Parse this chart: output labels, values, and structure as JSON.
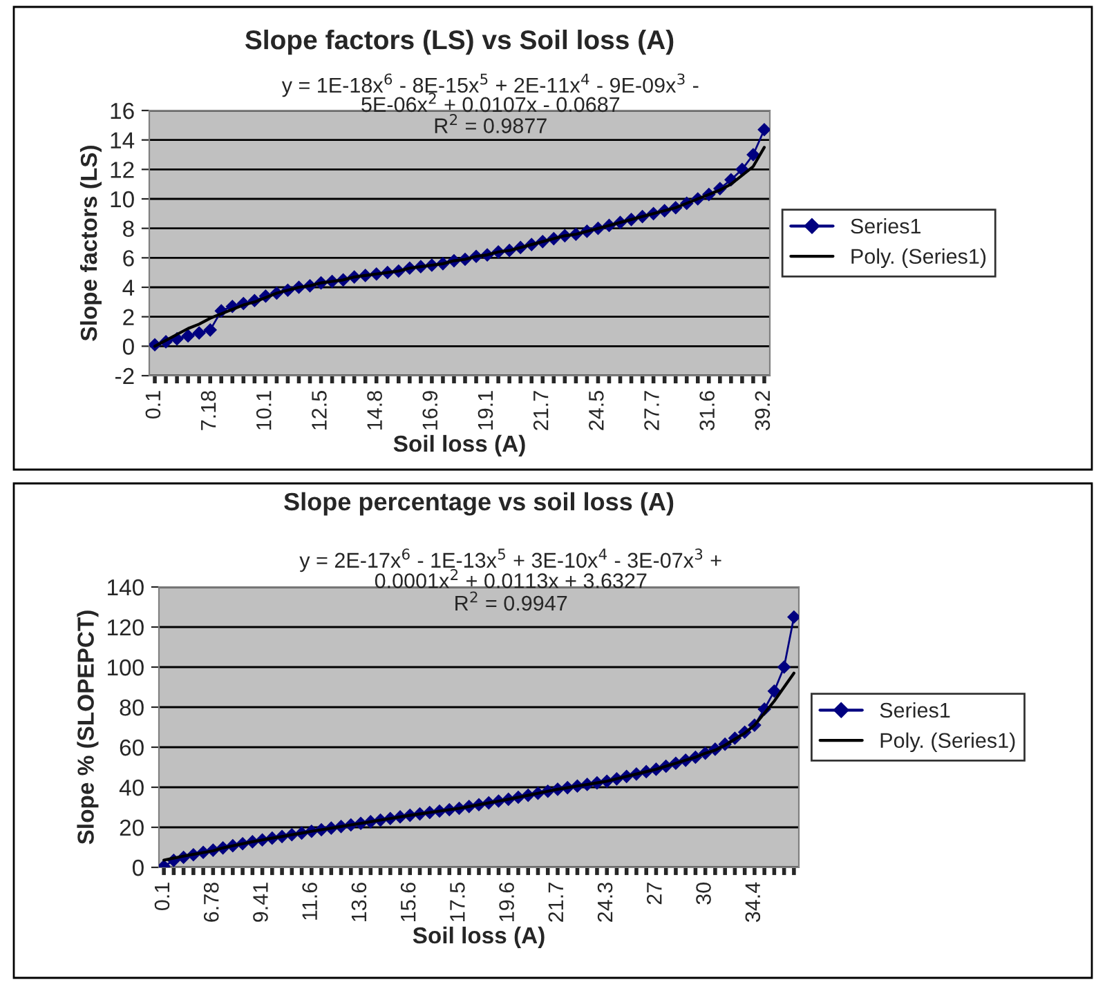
{
  "chart_data": [
    {
      "type": "line",
      "title": "Slope factors (LS) vs Soil loss (A)",
      "xlabel": "Soil loss (A)",
      "ylabel": "Slope factors (LS)",
      "annotations": [
        "y = 1E-18x$^{6}$ - 8E-15x$^{5}$ + 2E-11x$^{4}$ - 9E-09x$^{3}$ -",
        "5E-06x$^{2}$ + 0.0107x - 0.0687",
        "R$^{2}$ = 0.9877"
      ],
      "categories": [
        "0.1",
        null,
        null,
        null,
        null,
        "7.18",
        null,
        null,
        null,
        null,
        "10.1",
        null,
        null,
        null,
        null,
        "12.5",
        null,
        null,
        null,
        null,
        "14.8",
        null,
        null,
        null,
        null,
        "16.9",
        null,
        null,
        null,
        null,
        "19.1",
        null,
        null,
        null,
        null,
        "21.7",
        null,
        null,
        null,
        null,
        "24.5",
        null,
        null,
        null,
        null,
        "27.7",
        null,
        null,
        null,
        null,
        "31.6",
        null,
        null,
        null,
        null,
        "39.2"
      ],
      "series": [
        {
          "name": "Series1",
          "color": "#000080",
          "marker": "diamond",
          "values": [
            0.1,
            0.3,
            0.5,
            0.7,
            0.9,
            1.1,
            2.4,
            2.7,
            2.9,
            3.1,
            3.4,
            3.6,
            3.8,
            4.0,
            4.1,
            4.3,
            4.4,
            4.5,
            4.7,
            4.8,
            4.9,
            5.0,
            5.1,
            5.3,
            5.4,
            5.5,
            5.6,
            5.8,
            5.9,
            6.1,
            6.2,
            6.4,
            6.5,
            6.7,
            6.9,
            7.1,
            7.3,
            7.5,
            7.6,
            7.8,
            8.0,
            8.2,
            8.4,
            8.6,
            8.8,
            9.0,
            9.2,
            9.4,
            9.7,
            10.0,
            10.3,
            10.7,
            11.3,
            12.0,
            13.0,
            14.7
          ]
        },
        {
          "name": "Poly. (Series1)",
          "color": "#000000",
          "marker": "none",
          "values": [
            0.0,
            0.4,
            0.8,
            1.2,
            1.5,
            1.9,
            2.2,
            2.5,
            2.8,
            3.0,
            3.3,
            3.6,
            3.8,
            4.0,
            4.1,
            4.3,
            4.4,
            4.5,
            4.7,
            4.8,
            4.9,
            5.0,
            5.1,
            5.3,
            5.4,
            5.5,
            5.6,
            5.8,
            5.9,
            6.1,
            6.2,
            6.4,
            6.5,
            6.7,
            6.9,
            7.1,
            7.3,
            7.5,
            7.6,
            7.8,
            8.0,
            8.2,
            8.4,
            8.6,
            8.8,
            9.0,
            9.2,
            9.4,
            9.7,
            10.0,
            10.3,
            10.6,
            11.0,
            11.6,
            12.2,
            13.5
          ]
        }
      ],
      "ylim": [
        -2,
        16
      ],
      "yticks": [
        -2,
        0,
        2,
        4,
        6,
        8,
        10,
        12,
        14,
        16
      ],
      "grid": "y",
      "legend": "right",
      "line_style": "solid"
    },
    {
      "type": "line",
      "title": "Slope percentage vs soil loss (A)",
      "xlabel": "Soil loss (A)",
      "ylabel": "Slope % (SLOPEPCT)",
      "annotations": [
        "y = 2E-17x$^{6}$ - 1E-13x$^{5}$ + 3E-10x$^{4}$ - 3E-07x$^{3}$ +",
        "0.0001x$^{2}$ + 0.0113x + 3.6327",
        "R$^{2}$ = 0.9947"
      ],
      "categories": [
        "0.1",
        null,
        null,
        null,
        null,
        "6.78",
        null,
        null,
        null,
        null,
        "9.41",
        null,
        null,
        null,
        null,
        "11.6",
        null,
        null,
        null,
        null,
        "13.6",
        null,
        null,
        null,
        null,
        "15.6",
        null,
        null,
        null,
        null,
        "17.5",
        null,
        null,
        null,
        null,
        "19.6",
        null,
        null,
        null,
        null,
        "21.7",
        null,
        null,
        null,
        null,
        "24.3",
        null,
        null,
        null,
        null,
        "27",
        null,
        null,
        null,
        null,
        "30",
        null,
        null,
        null,
        null,
        "34.4",
        null,
        null,
        null,
        null
      ],
      "series": [
        {
          "name": "Series1",
          "color": "#000080",
          "marker": "diamond",
          "values": [
            0.5,
            3.5,
            5.0,
            6.3,
            7.5,
            8.6,
            9.7,
            10.8,
            11.8,
            12.8,
            13.7,
            14.6,
            15.4,
            16.3,
            17.1,
            18.0,
            18.8,
            19.6,
            20.4,
            21.2,
            22.0,
            22.8,
            23.6,
            24.4,
            25.2,
            26.0,
            26.7,
            27.4,
            28.1,
            28.8,
            29.5,
            30.4,
            31.3,
            32.2,
            33.1,
            34.0,
            35,
            36,
            37,
            38,
            39,
            39.8,
            40.6,
            41.4,
            42.2,
            43,
            44.2,
            45.4,
            46.6,
            47.8,
            49,
            50.5,
            52,
            53.5,
            55,
            57,
            59,
            61.5,
            64.5,
            67.5,
            71,
            79,
            88,
            100,
            125
          ]
        },
        {
          "name": "Poly. (Series1)",
          "color": "#000000",
          "marker": "none",
          "values": [
            3.6,
            4.6,
            5.6,
            6.5,
            7.4,
            8.3,
            9.7,
            10.8,
            11.8,
            12.8,
            13.7,
            14.6,
            15.4,
            16.3,
            17.1,
            18.0,
            18.8,
            19.6,
            20.4,
            21.2,
            22.0,
            22.8,
            23.6,
            24.4,
            25.2,
            26.0,
            26.7,
            27.4,
            28.1,
            28.8,
            29.5,
            30.4,
            31.3,
            32.2,
            33.1,
            34.0,
            35,
            36,
            37,
            38,
            39,
            39.8,
            40.6,
            41.4,
            42.2,
            43,
            44.2,
            45.4,
            46.6,
            47.8,
            49,
            50.5,
            52,
            53.5,
            55,
            57,
            58.5,
            61,
            64,
            67,
            71,
            77,
            83,
            90,
            97
          ]
        }
      ],
      "ylim": [
        0,
        140
      ],
      "yticks": [
        0,
        20,
        40,
        60,
        80,
        100,
        120,
        140
      ],
      "grid": "y",
      "legend": "right",
      "line_style": "solid"
    }
  ]
}
